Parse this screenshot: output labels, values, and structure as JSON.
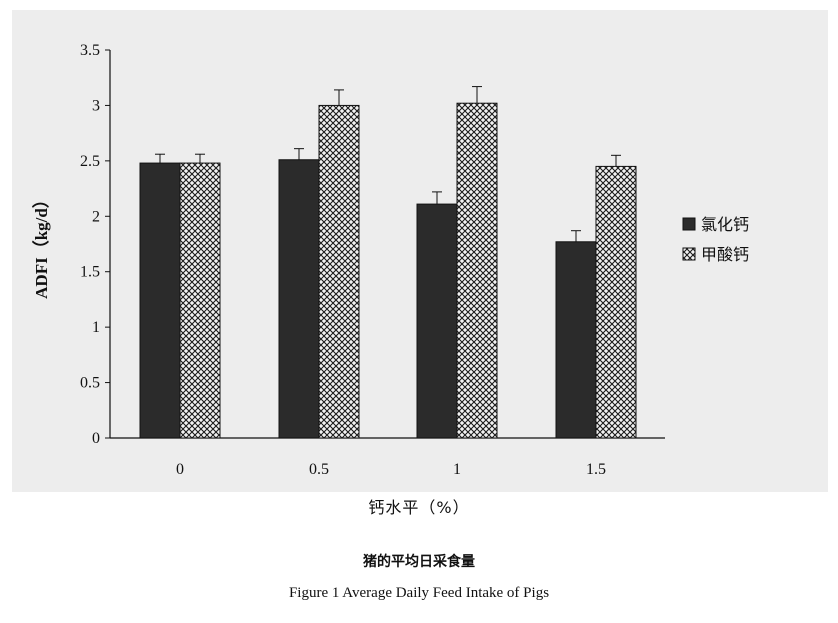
{
  "chart_data": {
    "type": "bar",
    "categories": [
      "0",
      "0.5",
      "1",
      "1.5"
    ],
    "series": [
      {
        "name": "氯化钙",
        "values": [
          2.48,
          2.51,
          2.11,
          1.77
        ],
        "errors": [
          0.08,
          0.1,
          0.11,
          0.1
        ],
        "fill": "dark"
      },
      {
        "name": "甲酸钙",
        "values": [
          2.48,
          3.0,
          3.02,
          2.45
        ],
        "errors": [
          0.08,
          0.14,
          0.15,
          0.1
        ],
        "fill": "crosshatch"
      }
    ],
    "ylabel": "ADFI（kg/d）",
    "xlabel": "钙水平（%）",
    "ylim": [
      0,
      3.5
    ],
    "yticks": [
      "0",
      "0.5",
      "1",
      "1.5",
      "2",
      "2.5",
      "3",
      "3.5"
    ],
    "legend_position": "right",
    "grid": false
  },
  "caption": {
    "cn": "猪的平均日采食量",
    "en": "Figure 1 Average Daily Feed Intake of Pigs"
  },
  "colors": {
    "panel": "#ededed",
    "bar_dark": "#2b2b2b",
    "hatch_bg": "#f2f2f2",
    "hatch_line": "#1a1a1a"
  }
}
